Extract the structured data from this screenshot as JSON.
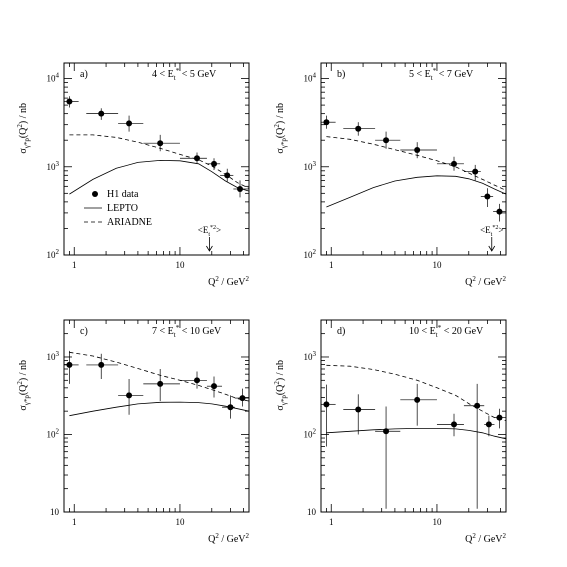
{
  "legend": {
    "data": "H1 data",
    "lepto": "LEPTO",
    "ariadne": "ARIADNE"
  },
  "x_unit_label": "GeV",
  "chart_data": [
    {
      "type": "scatter",
      "panel_label": "a)",
      "range_lo": "4",
      "range_hi": "5 GeV",
      "xlabel": "Q2 / GeV2",
      "ylabel": "σγ*p(Q2) / nb",
      "xscale": "log",
      "yscale": "log",
      "xlim": [
        0.8,
        45
      ],
      "ylim": [
        100,
        15000
      ],
      "yticks": [
        100,
        1000,
        10000
      ],
      "xticks": [
        1,
        10
      ],
      "show_legend": true,
      "marker": {
        "label": "<Et*2>",
        "x": 19
      },
      "data": {
        "x": [
          0.9,
          1.8,
          3.3,
          6.5,
          14.5,
          21,
          28,
          37
        ],
        "y": [
          5500,
          4000,
          3100,
          1850,
          1250,
          1080,
          800,
          560
        ],
        "xerr_lo": [
          0.8,
          1.3,
          2.6,
          4.5,
          10,
          18,
          24,
          32
        ],
        "xerr_hi": [
          1.1,
          2.6,
          4.5,
          10,
          18,
          24,
          32,
          45
        ],
        "yerr_lo": [
          4700,
          3400,
          2500,
          1500,
          1100,
          920,
          680,
          450
        ],
        "yerr_hi": [
          6300,
          4600,
          3800,
          2300,
          1450,
          1250,
          950,
          700
        ]
      },
      "series": [
        {
          "name": "LEPTO",
          "x": [
            0.9,
            1.5,
            2.5,
            4,
            6.5,
            10,
            15,
            20,
            27,
            35,
            45
          ],
          "y": [
            490,
            720,
            960,
            1120,
            1180,
            1170,
            1080,
            880,
            690,
            580,
            530
          ]
        },
        {
          "name": "ARIADNE",
          "x": [
            0.9,
            1.5,
            2.5,
            4,
            6.5,
            10,
            15,
            20,
            27,
            35,
            45
          ],
          "y": [
            2300,
            2300,
            2150,
            1900,
            1620,
            1380,
            1200,
            1020,
            820,
            660,
            570
          ]
        }
      ]
    },
    {
      "type": "scatter",
      "panel_label": "b)",
      "range_lo": "5",
      "range_hi": "7 GeV",
      "xlabel": "Q2 / GeV2",
      "ylabel": "σγ*p(Q2) / nb",
      "xscale": "log",
      "yscale": "log",
      "xlim": [
        0.8,
        45
      ],
      "ylim": [
        100,
        15000
      ],
      "yticks": [
        100,
        1000,
        10000
      ],
      "xticks": [
        1,
        10
      ],
      "show_legend": false,
      "marker": {
        "label": "<Et*2>",
        "x": 33
      },
      "data": {
        "x": [
          0.9,
          1.8,
          3.3,
          6.5,
          14.5,
          23,
          30,
          39
        ],
        "y": [
          3200,
          2700,
          2000,
          1550,
          1080,
          880,
          460,
          310
        ],
        "xerr_lo": [
          0.8,
          1.3,
          2.6,
          4.5,
          10,
          18,
          26,
          34
        ],
        "xerr_hi": [
          1.1,
          2.6,
          4.5,
          10,
          18,
          26,
          34,
          45
        ],
        "yerr_lo": [
          2700,
          2250,
          1600,
          1250,
          900,
          700,
          350,
          240
        ],
        "yerr_hi": [
          3800,
          3200,
          2500,
          1900,
          1300,
          1050,
          570,
          380
        ]
      },
      "series": [
        {
          "name": "LEPTO",
          "x": [
            0.9,
            1.5,
            2.5,
            4,
            6.5,
            10,
            15,
            20,
            27,
            35,
            45
          ],
          "y": [
            350,
            450,
            580,
            690,
            760,
            790,
            780,
            730,
            650,
            560,
            490
          ]
        },
        {
          "name": "ARIADNE",
          "x": [
            0.9,
            1.5,
            2.5,
            4,
            6.5,
            10,
            15,
            20,
            27,
            35,
            45
          ],
          "y": [
            2200,
            2050,
            1800,
            1560,
            1350,
            1170,
            1000,
            850,
            720,
            620,
            540
          ]
        }
      ]
    },
    {
      "type": "scatter",
      "panel_label": "c)",
      "range_lo": "7",
      "range_hi": "10 GeV",
      "xlabel": "Q2 / GeV2",
      "ylabel": "σγ*p(Q2) / nb",
      "xscale": "log",
      "yscale": "log",
      "xlim": [
        0.8,
        45
      ],
      "ylim": [
        10,
        3000
      ],
      "yticks": [
        10,
        100,
        1000
      ],
      "xticks": [
        1,
        10
      ],
      "show_legend": false,
      "marker": null,
      "data": {
        "x": [
          0.9,
          1.8,
          3.3,
          6.5,
          14.5,
          21,
          30,
          39
        ],
        "y": [
          790,
          790,
          320,
          450,
          500,
          420,
          225,
          295
        ],
        "xerr_lo": [
          0.8,
          1.3,
          2.6,
          4.5,
          10,
          18,
          25,
          33
        ],
        "xerr_hi": [
          1.1,
          2.6,
          4.5,
          10,
          18,
          25,
          33,
          45
        ],
        "yerr_lo": [
          450,
          520,
          180,
          270,
          390,
          300,
          160,
          230
        ],
        "yerr_hi": [
          1200,
          1100,
          520,
          700,
          650,
          560,
          320,
          390
        ]
      },
      "series": [
        {
          "name": "LEPTO",
          "x": [
            0.9,
            1.5,
            2.5,
            4,
            6.5,
            10,
            15,
            20,
            27,
            35,
            45
          ],
          "y": [
            175,
            200,
            225,
            248,
            260,
            262,
            258,
            248,
            232,
            215,
            200
          ]
        },
        {
          "name": "ARIADNE",
          "x": [
            0.9,
            1.5,
            2.5,
            4,
            6.5,
            10,
            15,
            20,
            27,
            35,
            45
          ],
          "y": [
            1150,
            1030,
            860,
            710,
            580,
            500,
            430,
            380,
            330,
            290,
            270
          ]
        }
      ]
    },
    {
      "type": "scatter",
      "panel_label": "d)",
      "range_lo": "10",
      "range_hi": "20 GeV",
      "xlabel": "Q2 / GeV2",
      "ylabel": "σγ*p(Q2) / nb",
      "xscale": "log",
      "yscale": "log",
      "xlim": [
        0.8,
        45
      ],
      "ylim": [
        10,
        3000
      ],
      "yticks": [
        10,
        100,
        1000
      ],
      "xticks": [
        1,
        10
      ],
      "show_legend": false,
      "marker": null,
      "data": {
        "x": [
          0.9,
          1.8,
          3.3,
          6.5,
          14.5,
          24,
          31,
          39
        ],
        "y": [
          245,
          210,
          110,
          280,
          135,
          235,
          135,
          165
        ],
        "xerr_lo": [
          0.8,
          1.3,
          2.6,
          4.5,
          10,
          18,
          28,
          35
        ],
        "xerr_hi": [
          1.1,
          2.6,
          4.5,
          10,
          18,
          28,
          35,
          45
        ],
        "yerr_lo": [
          70,
          100,
          11,
          130,
          95,
          11,
          95,
          120
        ],
        "yerr_hi": [
          440,
          330,
          230,
          450,
          185,
          450,
          175,
          215
        ]
      },
      "series": [
        {
          "name": "LEPTO",
          "x": [
            0.9,
            1.5,
            2.5,
            4,
            6.5,
            10,
            15,
            20,
            27,
            35,
            45
          ],
          "y": [
            105,
            110,
            115,
            118,
            120,
            120,
            118,
            113,
            105,
            95,
            88
          ]
        },
        {
          "name": "ARIADNE",
          "x": [
            0.9,
            1.5,
            2.5,
            4,
            6.5,
            10,
            15,
            20,
            27,
            35,
            45
          ],
          "y": [
            780,
            760,
            690,
            600,
            500,
            400,
            320,
            250,
            200,
            165,
            150
          ]
        }
      ]
    }
  ]
}
